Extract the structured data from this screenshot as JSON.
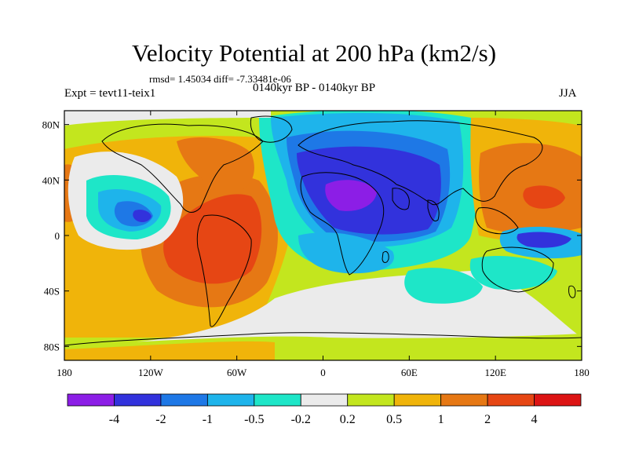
{
  "header": {
    "title": "Velocity Potential at 200 hPa (km2/s)",
    "stats": "rmsd= 1.45034 diff= -7.33481e-06",
    "experiment": "Expt = tevt11-teix1",
    "period": "0140kyr BP - 0140kyr BP",
    "season": "JJA"
  },
  "map": {
    "lat_ticks": [
      "80N",
      "40N",
      "0",
      "40S",
      "80S"
    ],
    "lat_values": [
      80,
      40,
      0,
      -40,
      -80
    ],
    "lon_ticks": [
      "180",
      "120W",
      "60W",
      "0",
      "60E",
      "120E",
      "180"
    ],
    "lon_values": [
      -180,
      -120,
      -60,
      0,
      60,
      120,
      180
    ]
  },
  "colorbar": {
    "labels": [
      "-4",
      "-2",
      "-1",
      "-0.5",
      "-0.2",
      "0.2",
      "0.5",
      "1",
      "2",
      "4"
    ],
    "colors": [
      "#8c1ee6",
      "#3232dc",
      "#1e78e6",
      "#1eb4eb",
      "#1ee6c8",
      "#ebebeb",
      "#c3e61e",
      "#f0b40a",
      "#e67814",
      "#e64614",
      "#dc1414"
    ]
  }
}
